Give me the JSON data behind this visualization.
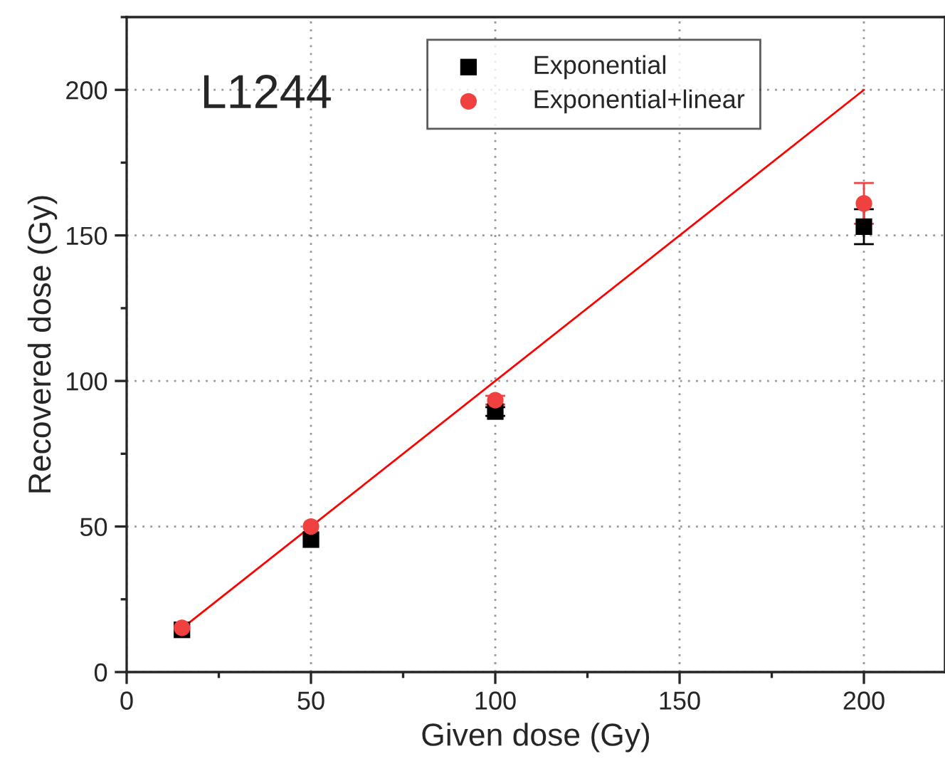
{
  "chart_data": {
    "type": "scatter",
    "xlabel": "Given dose (Gy)",
    "ylabel": "Recovered dose (Gy)",
    "annotations": [
      "L1244"
    ],
    "xlim": [
      0,
      222
    ],
    "ylim": [
      0,
      225
    ],
    "xticks": [
      0,
      50,
      100,
      150,
      200
    ],
    "yticks": [
      0,
      50,
      100,
      150,
      200
    ],
    "grid": true,
    "legend": "top right",
    "series": [
      {
        "name": "Exponential",
        "marker": "square",
        "color": "#000000",
        "x": [
          15,
          50,
          100,
          200
        ],
        "values": [
          14.5,
          45.5,
          89.5,
          153
        ],
        "errors": [
          null,
          null,
          1.5,
          6
        ]
      },
      {
        "name": "Exponential+linear",
        "marker": "circle",
        "color": "#f04040",
        "x": [
          15,
          50,
          100,
          200
        ],
        "values": [
          15.2,
          50,
          93.4,
          161
        ],
        "errors": [
          null,
          null,
          1.5,
          7
        ]
      },
      {
        "type": "line",
        "marker": "none",
        "line_style": "solid",
        "color": "#ff0000",
        "x": [
          15,
          200
        ],
        "values": [
          15,
          200
        ]
      }
    ]
  }
}
